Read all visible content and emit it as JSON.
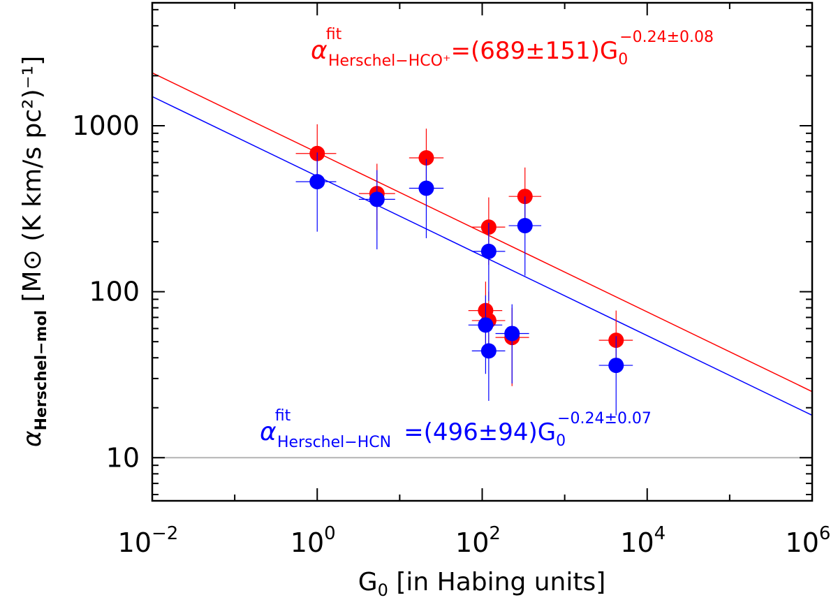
{
  "chart_data": {
    "type": "scatter",
    "x_scale": "log",
    "y_scale": "log",
    "xlim": [
      0.01,
      1000000
    ],
    "ylim": [
      5.5,
      5500
    ],
    "x_ticks": [
      {
        "value": 0.01,
        "base": "10",
        "exp": "−2"
      },
      {
        "value": 1,
        "base": "10",
        "exp": "0"
      },
      {
        "value": 100,
        "base": "10",
        "exp": "2"
      },
      {
        "value": 10000,
        "base": "10",
        "exp": "4"
      },
      {
        "value": 1000000,
        "base": "10",
        "exp": "6"
      }
    ],
    "y_ticks": [
      {
        "value": 10,
        "label": "10"
      },
      {
        "value": 100,
        "label": "100"
      },
      {
        "value": 1000,
        "label": "1000"
      }
    ],
    "xlabel": {
      "main": "G",
      "sub": "0",
      "rest": " [in Habing units]"
    },
    "ylabel": {
      "alpha": "α",
      "sub": "Herschel−mol",
      "rest": " [M⊙ (K km/s pc²)⁻¹]"
    },
    "reference_line": {
      "y": 10,
      "color": "#b4b4b4"
    },
    "series": [
      {
        "name": "HCO+",
        "color": "#ff0000",
        "points": [
          {
            "x": 1.0,
            "y": 680,
            "xlo": 0.55,
            "xhi": 1.7,
            "ylo": 480,
            "yhi": 1020
          },
          {
            "x": 5.3,
            "y": 390,
            "xlo": 3.2,
            "xhi": 8.8,
            "ylo": 235,
            "yhi": 590
          },
          {
            "x": 21,
            "y": 640,
            "xlo": 13,
            "xhi": 34,
            "ylo": 420,
            "yhi": 960
          },
          {
            "x": 120,
            "y": 245,
            "xlo": 75,
            "xhi": 190,
            "ylo": 145,
            "yhi": 370
          },
          {
            "x": 330,
            "y": 375,
            "xlo": 210,
            "xhi": 520,
            "ylo": 240,
            "yhi": 560
          },
          {
            "x": 110,
            "y": 77,
            "xlo": 68,
            "xhi": 175,
            "ylo": 46,
            "yhi": 115
          },
          {
            "x": 120,
            "y": 67,
            "xlo": 75,
            "xhi": 190,
            "ylo": 40,
            "yhi": 100
          },
          {
            "x": 230,
            "y": 53,
            "xlo": 145,
            "xhi": 370,
            "ylo": 27,
            "yhi": 80
          },
          {
            "x": 4200,
            "y": 51,
            "xlo": 2600,
            "xhi": 6700,
            "ylo": 33,
            "yhi": 77
          }
        ]
      },
      {
        "name": "HCN",
        "color": "#0000ff",
        "points": [
          {
            "x": 1.0,
            "y": 460,
            "xlo": 0.55,
            "xhi": 1.7,
            "ylo": 230,
            "yhi": 690
          },
          {
            "x": 5.3,
            "y": 360,
            "xlo": 3.2,
            "xhi": 8.8,
            "ylo": 180,
            "yhi": 540
          },
          {
            "x": 21,
            "y": 420,
            "xlo": 13,
            "xhi": 34,
            "ylo": 210,
            "yhi": 630
          },
          {
            "x": 120,
            "y": 175,
            "xlo": 75,
            "xhi": 190,
            "ylo": 88,
            "yhi": 260
          },
          {
            "x": 330,
            "y": 250,
            "xlo": 210,
            "xhi": 520,
            "ylo": 125,
            "yhi": 375
          },
          {
            "x": 110,
            "y": 63,
            "xlo": 68,
            "xhi": 175,
            "ylo": 32,
            "yhi": 95
          },
          {
            "x": 120,
            "y": 44,
            "xlo": 75,
            "xhi": 190,
            "ylo": 22,
            "yhi": 66
          },
          {
            "x": 230,
            "y": 56,
            "xlo": 145,
            "xhi": 370,
            "ylo": 28,
            "yhi": 84
          },
          {
            "x": 4200,
            "y": 36,
            "xlo": 2600,
            "xhi": 6700,
            "ylo": 18,
            "yhi": 54
          }
        ]
      }
    ],
    "fits": [
      {
        "name": "HCO+ fit",
        "color": "#ff0000",
        "coef": 689,
        "slope": -0.24,
        "label_alpha": "α",
        "label_sup": "fit",
        "label_sub": "Herschel−HCO⁺",
        "label_eq": "=(689±151)G",
        "label_g_sub": "0",
        "label_g_sup": "−0.24±0.08"
      },
      {
        "name": "HCN fit",
        "color": "#0000ff",
        "coef": 496,
        "slope": -0.24,
        "label_alpha": "α",
        "label_sup": "fit",
        "label_sub": "Herschel−HCN",
        "label_eq": "=(496±94)G",
        "label_g_sub": "0",
        "label_g_sup": "−0.24±0.07"
      }
    ]
  }
}
